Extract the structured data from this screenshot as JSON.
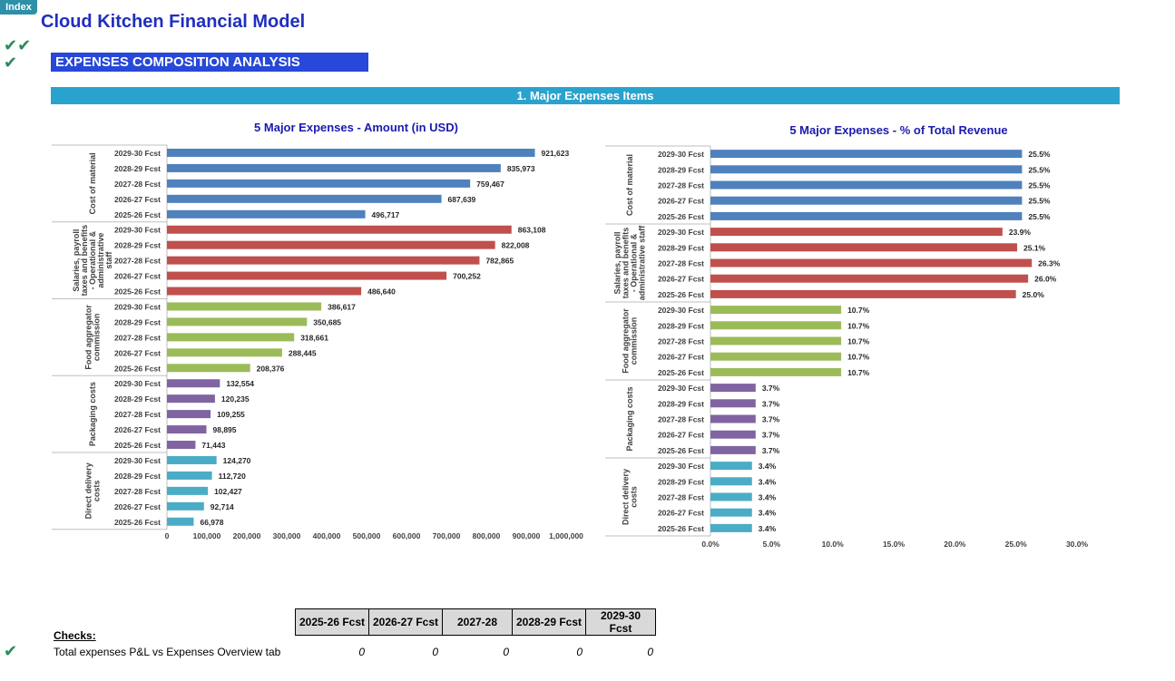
{
  "index_button": "Index",
  "title": "Cloud Kitchen Financial Model",
  "check_marks": {
    "double": "✔✔",
    "single": "✔"
  },
  "section_banner": "EXPENSES COMPOSITION ANALYSIS",
  "subsection_banner": "1. Major Expenses Items",
  "colors": {
    "cost_of_material": "#4f81bd",
    "salaries": "#c0504d",
    "food_aggregator": "#9bbb59",
    "packaging": "#8064a2",
    "delivery": "#4bacc6"
  },
  "chart_data": [
    {
      "type": "bar",
      "orientation": "horizontal",
      "title": "5 Major Expenses - Amount (in USD)",
      "xlim": [
        0,
        1000000
      ],
      "x_ticks": [
        "0",
        "100,000",
        "200,000",
        "300,000",
        "400,000",
        "500,000",
        "600,000",
        "700,000",
        "800,000",
        "900,000",
        "1,000,000"
      ],
      "categories": [
        "2029-30 Fcst",
        "2028-29 Fcst",
        "2027-28 Fcst",
        "2026-27 Fcst",
        "2025-26 Fcst"
      ],
      "groups": [
        {
          "name": "Cost of material",
          "label_lines": [
            "Cost of material"
          ],
          "values": [
            921623,
            835973,
            759467,
            687639,
            496717
          ],
          "labels": [
            "921,623",
            "835,973",
            "759,467",
            "687,639",
            "496,717"
          ]
        },
        {
          "name": "Salaries, payroll taxes and benefits - Operational & administrative staff",
          "label_lines": [
            "Salaries, payroll",
            "taxes and benefits",
            "- Operational &",
            "administrative",
            "staff"
          ],
          "values": [
            863108,
            822008,
            782865,
            700252,
            486640
          ],
          "labels": [
            "863,108",
            "822,008",
            "782,865",
            "700,252",
            "486,640"
          ]
        },
        {
          "name": "Food aggregator commission",
          "label_lines": [
            "Food aggregator",
            "commission"
          ],
          "values": [
            386617,
            350685,
            318661,
            288445,
            208376
          ],
          "labels": [
            "386,617",
            "350,685",
            "318,661",
            "288,445",
            "208,376"
          ]
        },
        {
          "name": "Packaging costs",
          "label_lines": [
            "Packaging costs"
          ],
          "values": [
            132554,
            120235,
            109255,
            98895,
            71443
          ],
          "labels": [
            "132,554",
            "120,235",
            "109,255",
            "98,895",
            "71,443"
          ]
        },
        {
          "name": "Direct delivery costs",
          "label_lines": [
            "Direct delivery",
            "costs"
          ],
          "values": [
            124270,
            112720,
            102427,
            92714,
            66978
          ],
          "labels": [
            "124,270",
            "112,720",
            "102,427",
            "92,714",
            "66,978"
          ]
        }
      ]
    },
    {
      "type": "bar",
      "orientation": "horizontal",
      "title": "5 Major Expenses - % of Total Revenue",
      "xlim": [
        0,
        30
      ],
      "x_ticks": [
        "0.0%",
        "5.0%",
        "10.0%",
        "15.0%",
        "20.0%",
        "25.0%",
        "30.0%"
      ],
      "categories": [
        "2029-30 Fcst",
        "2028-29 Fcst",
        "2027-28 Fcst",
        "2026-27 Fcst",
        "2025-26 Fcst"
      ],
      "groups": [
        {
          "name": "Cost of material",
          "label_lines": [
            "Cost of material"
          ],
          "values": [
            25.5,
            25.5,
            25.5,
            25.5,
            25.5
          ],
          "labels": [
            "25.5%",
            "25.5%",
            "25.5%",
            "25.5%",
            "25.5%"
          ]
        },
        {
          "name": "Salaries, payroll taxes and benefits - Operational & administrative staff",
          "label_lines": [
            "Salaries, payroll",
            "taxes and benefits",
            "- Operational &",
            "administrative staff"
          ],
          "values": [
            23.9,
            25.1,
            26.3,
            26.0,
            25.0
          ],
          "labels": [
            "23.9%",
            "25.1%",
            "26.3%",
            "26.0%",
            "25.0%"
          ]
        },
        {
          "name": "Food aggregator commission",
          "label_lines": [
            "Food aggregator",
            "commission"
          ],
          "values": [
            10.7,
            10.7,
            10.7,
            10.7,
            10.7
          ],
          "labels": [
            "10.7%",
            "10.7%",
            "10.7%",
            "10.7%",
            "10.7%"
          ]
        },
        {
          "name": "Packaging costs",
          "label_lines": [
            "Packaging costs"
          ],
          "values": [
            3.7,
            3.7,
            3.7,
            3.7,
            3.7
          ],
          "labels": [
            "3.7%",
            "3.7%",
            "3.7%",
            "3.7%",
            "3.7%"
          ]
        },
        {
          "name": "Direct delivery costs",
          "label_lines": [
            "Direct delivery",
            "costs"
          ],
          "values": [
            3.4,
            3.4,
            3.4,
            3.4,
            3.4
          ],
          "labels": [
            "3.4%",
            "3.4%",
            "3.4%",
            "3.4%",
            "3.4%"
          ]
        }
      ]
    }
  ],
  "checks": {
    "heading": "Checks:",
    "columns": [
      "2025-26 Fcst",
      "2026-27 Fcst",
      "2027-28",
      "2028-29 Fcst",
      "2029-30 Fcst"
    ],
    "rows": [
      {
        "label": "Total expenses P&L vs Expenses Overview tab",
        "values": [
          "0",
          "0",
          "0",
          "0",
          "0"
        ]
      }
    ]
  }
}
